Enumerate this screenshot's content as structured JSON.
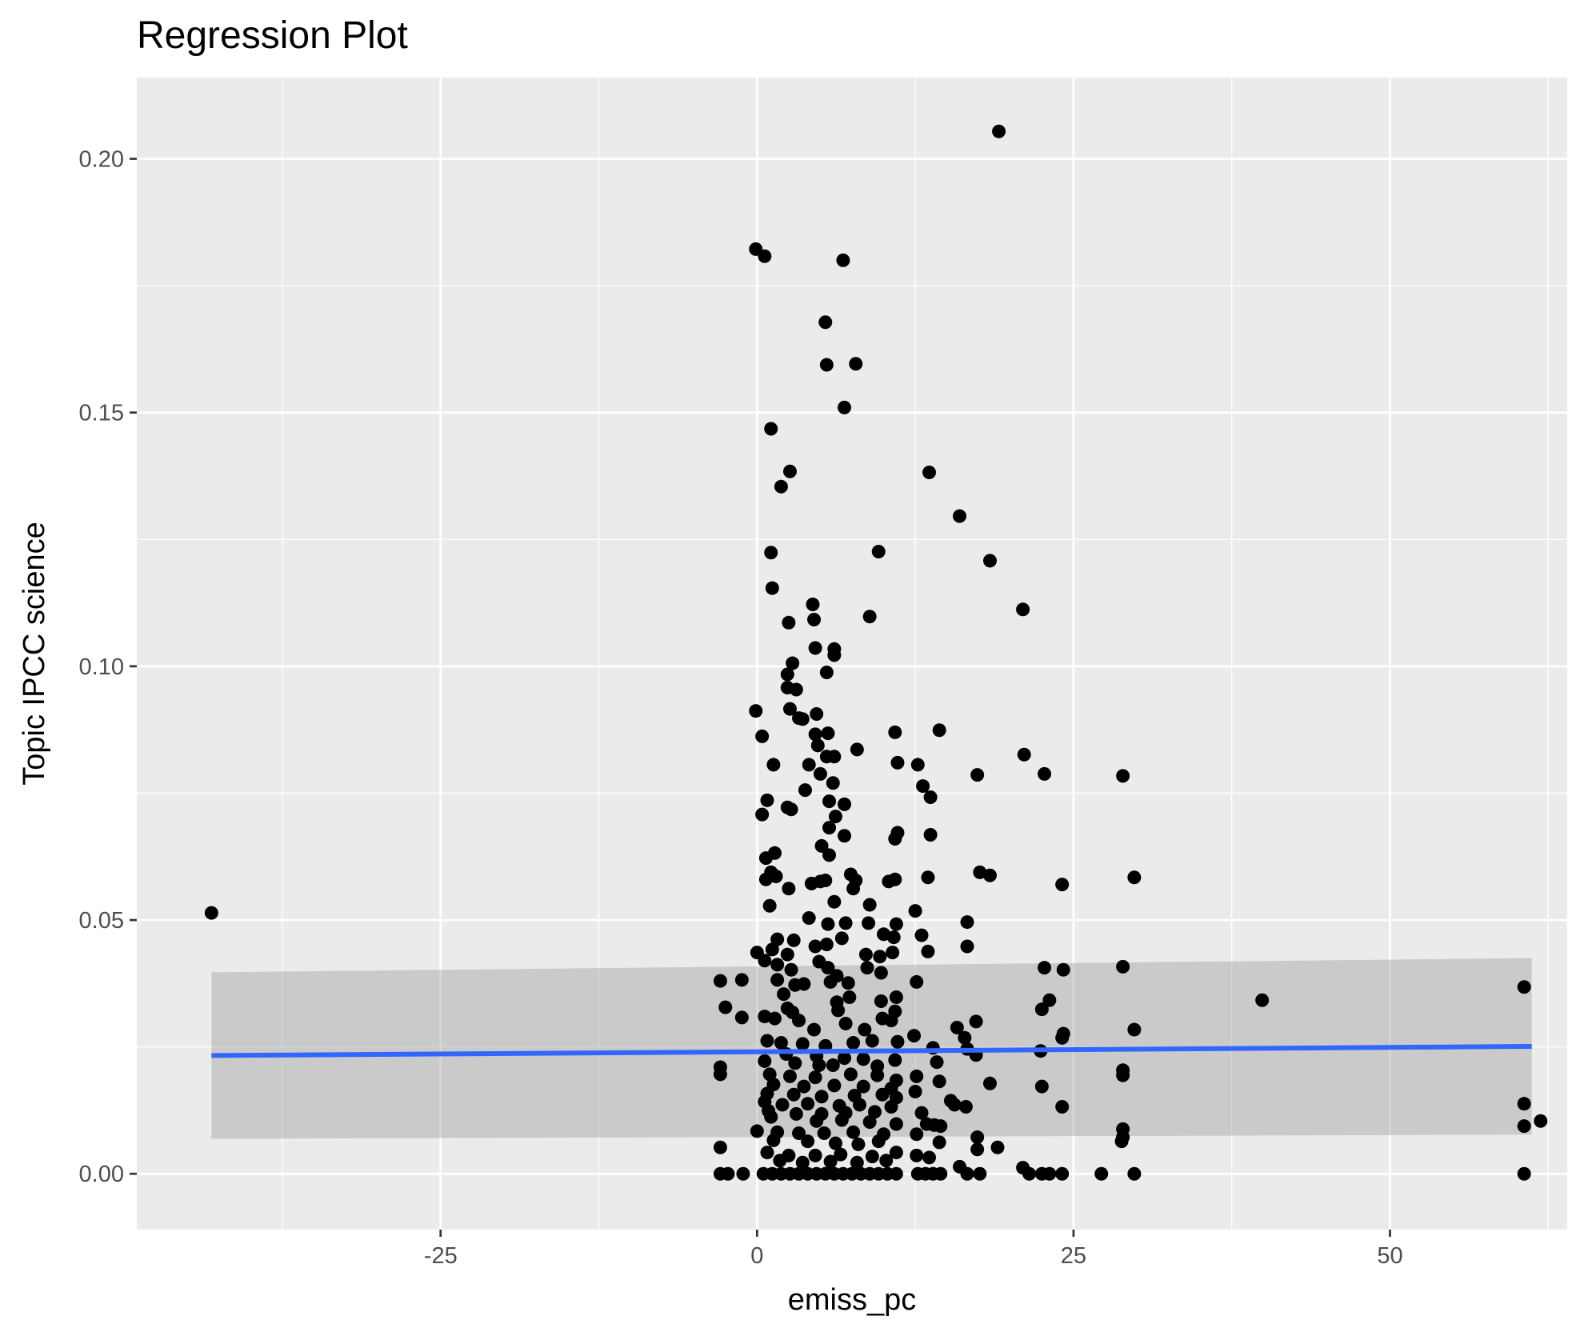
{
  "chart_data": {
    "type": "scatter",
    "title": "Regression Plot",
    "xlabel": "emiss_pc",
    "ylabel": "Topic IPCC science",
    "xlim": [
      -49,
      64
    ],
    "ylim": [
      -0.011,
      0.216
    ],
    "x_ticks": [
      -25,
      0,
      25,
      50
    ],
    "x_tick_labels": [
      "-25",
      "0",
      "25",
      "50"
    ],
    "y_ticks": [
      0.0,
      0.05,
      0.1,
      0.15,
      0.2
    ],
    "y_tick_labels": [
      "0.00",
      "0.05",
      "0.10",
      "0.15",
      "0.20"
    ],
    "grid": true,
    "colors": {
      "panel": "#ebebeb",
      "grid": "#ffffff",
      "point": "#000000",
      "line": "#3366ff",
      "ribbon": "#c2c2c2"
    },
    "regression": {
      "x": [
        -43.1,
        61.2
      ],
      "y": [
        0.0233,
        0.0251
      ],
      "ci_upper": [
        0.0397,
        0.0425
      ],
      "ci_lower": [
        0.0069,
        0.0077
      ]
    },
    "points": [
      [
        -43.1,
        0.0514
      ],
      [
        19.1,
        0.2054
      ],
      [
        -0.1,
        0.1822
      ],
      [
        0.6,
        0.1808
      ],
      [
        6.8,
        0.18
      ],
      [
        5.4,
        0.1678
      ],
      [
        5.5,
        0.1594
      ],
      [
        7.8,
        0.1596
      ],
      [
        6.9,
        0.151
      ],
      [
        1.1,
        0.1468
      ],
      [
        2.6,
        0.1384
      ],
      [
        1.9,
        0.1354
      ],
      [
        13.6,
        0.1382
      ],
      [
        16.0,
        0.1296
      ],
      [
        1.1,
        0.1224
      ],
      [
        9.6,
        0.1226
      ],
      [
        18.4,
        0.1208
      ],
      [
        1.2,
        0.1154
      ],
      [
        4.4,
        0.1122
      ],
      [
        21.0,
        0.1112
      ],
      [
        4.5,
        0.1092
      ],
      [
        8.9,
        0.1098
      ],
      [
        2.5,
        0.1086
      ],
      [
        6.1,
        0.1034
      ],
      [
        4.6,
        0.1036
      ],
      [
        6.1,
        0.1022
      ],
      [
        2.8,
        0.1006
      ],
      [
        2.4,
        0.0984
      ],
      [
        5.5,
        0.0988
      ],
      [
        3.1,
        0.0954
      ],
      [
        2.4,
        0.0958
      ],
      [
        -0.1,
        0.0912
      ],
      [
        4.7,
        0.0906
      ],
      [
        2.6,
        0.0916
      ],
      [
        3.3,
        0.0898
      ],
      [
        3.6,
        0.0896
      ],
      [
        0.4,
        0.0862
      ],
      [
        4.6,
        0.0866
      ],
      [
        5.6,
        0.0868
      ],
      [
        10.9,
        0.087
      ],
      [
        14.4,
        0.0874
      ],
      [
        4.8,
        0.0844
      ],
      [
        7.9,
        0.0836
      ],
      [
        5.5,
        0.0822
      ],
      [
        6.1,
        0.0822
      ],
      [
        1.3,
        0.0806
      ],
      [
        4.1,
        0.0806
      ],
      [
        11.1,
        0.081
      ],
      [
        12.7,
        0.0806
      ],
      [
        5.0,
        0.0788
      ],
      [
        17.4,
        0.0786
      ],
      [
        22.7,
        0.0788
      ],
      [
        28.9,
        0.0784
      ],
      [
        6.0,
        0.077
      ],
      [
        13.1,
        0.0764
      ],
      [
        21.1,
        0.0826
      ],
      [
        3.8,
        0.0756
      ],
      [
        5.7,
        0.0734
      ],
      [
        6.9,
        0.0728
      ],
      [
        0.8,
        0.0736
      ],
      [
        2.4,
        0.0722
      ],
      [
        2.7,
        0.0718
      ],
      [
        0.4,
        0.0708
      ],
      [
        6.2,
        0.0704
      ],
      [
        13.7,
        0.0742
      ],
      [
        5.7,
        0.0682
      ],
      [
        6.9,
        0.0666
      ],
      [
        11.1,
        0.0672
      ],
      [
        10.9,
        0.066
      ],
      [
        13.7,
        0.0668
      ],
      [
        5.1,
        0.0646
      ],
      [
        5.7,
        0.0628
      ],
      [
        0.7,
        0.0622
      ],
      [
        1.4,
        0.0632
      ],
      [
        1.1,
        0.0594
      ],
      [
        7.4,
        0.059
      ],
      [
        7.8,
        0.0578
      ],
      [
        10.4,
        0.0576
      ],
      [
        10.9,
        0.058
      ],
      [
        13.5,
        0.0584
      ],
      [
        17.6,
        0.0594
      ],
      [
        18.4,
        0.0588
      ],
      [
        24.1,
        0.057
      ],
      [
        29.8,
        0.0584
      ],
      [
        0.7,
        0.058
      ],
      [
        1.5,
        0.0586
      ],
      [
        2.5,
        0.0562
      ],
      [
        4.3,
        0.0572
      ],
      [
        5.0,
        0.0576
      ],
      [
        5.4,
        0.0578
      ],
      [
        7.6,
        0.0562
      ],
      [
        6.1,
        0.0536
      ],
      [
        1.0,
        0.0528
      ],
      [
        8.9,
        0.053
      ],
      [
        12.5,
        0.0518
      ],
      [
        4.1,
        0.0504
      ],
      [
        5.6,
        0.0492
      ],
      [
        7.0,
        0.0494
      ],
      [
        8.8,
        0.0494
      ],
      [
        11.0,
        0.0492
      ],
      [
        16.6,
        0.0496
      ],
      [
        13.0,
        0.047
      ],
      [
        10.0,
        0.0472
      ],
      [
        10.8,
        0.0466
      ],
      [
        6.7,
        0.0464
      ],
      [
        1.6,
        0.0462
      ],
      [
        2.9,
        0.046
      ],
      [
        4.6,
        0.0448
      ],
      [
        5.5,
        0.0452
      ],
      [
        16.6,
        0.0448
      ],
      [
        13.5,
        0.0438
      ],
      [
        0.0,
        0.0436
      ],
      [
        1.2,
        0.0442
      ],
      [
        2.4,
        0.0432
      ],
      [
        4.9,
        0.0418
      ],
      [
        8.6,
        0.0432
      ],
      [
        9.7,
        0.0428
      ],
      [
        10.7,
        0.0436
      ],
      [
        0.6,
        0.042
      ],
      [
        1.6,
        0.0412
      ],
      [
        2.7,
        0.0402
      ],
      [
        5.6,
        0.0406
      ],
      [
        6.3,
        0.039
      ],
      [
        8.7,
        0.0406
      ],
      [
        9.8,
        0.0396
      ],
      [
        22.7,
        0.0406
      ],
      [
        24.2,
        0.0402
      ],
      [
        28.9,
        0.0408
      ],
      [
        -2.9,
        0.038
      ],
      [
        -1.2,
        0.0382
      ],
      [
        1.6,
        0.0382
      ],
      [
        3.0,
        0.0372
      ],
      [
        3.7,
        0.0374
      ],
      [
        5.8,
        0.0378
      ],
      [
        7.2,
        0.0376
      ],
      [
        12.6,
        0.0378
      ],
      [
        2.1,
        0.0354
      ],
      [
        7.3,
        0.0348
      ],
      [
        11.0,
        0.0348
      ],
      [
        6.3,
        0.0338
      ],
      [
        9.8,
        0.034
      ],
      [
        23.1,
        0.0342
      ],
      [
        39.9,
        0.0342
      ],
      [
        60.6,
        0.0368
      ],
      [
        -2.5,
        0.0328
      ],
      [
        2.4,
        0.0326
      ],
      [
        2.8,
        0.0318
      ],
      [
        6.4,
        0.0322
      ],
      [
        10.9,
        0.032
      ],
      [
        22.5,
        0.0324
      ],
      [
        -1.2,
        0.0308
      ],
      [
        0.6,
        0.031
      ],
      [
        1.4,
        0.0306
      ],
      [
        3.3,
        0.0302
      ],
      [
        7.0,
        0.0296
      ],
      [
        9.9,
        0.0306
      ],
      [
        10.6,
        0.0302
      ],
      [
        17.3,
        0.03
      ],
      [
        4.5,
        0.0284
      ],
      [
        8.5,
        0.0284
      ],
      [
        15.8,
        0.0288
      ],
      [
        29.8,
        0.0284
      ],
      [
        24.2,
        0.0276
      ],
      [
        12.4,
        0.0272
      ],
      [
        16.4,
        0.0268
      ],
      [
        0.8,
        0.0262
      ],
      [
        1.9,
        0.0258
      ],
      [
        3.6,
        0.0256
      ],
      [
        5.4,
        0.0252
      ],
      [
        7.6,
        0.0258
      ],
      [
        9.1,
        0.0262
      ],
      [
        11.1,
        0.026
      ],
      [
        13.9,
        0.0248
      ],
      [
        16.6,
        0.0246
      ],
      [
        24.1,
        0.0268
      ],
      [
        22.4,
        0.0242
      ],
      [
        2.3,
        0.0236
      ],
      [
        4.7,
        0.0232
      ],
      [
        6.9,
        0.0228
      ],
      [
        8.4,
        0.0226
      ],
      [
        10.9,
        0.0224
      ],
      [
        14.2,
        0.022
      ],
      [
        17.3,
        0.0234
      ],
      [
        0.6,
        0.0222
      ],
      [
        3.0,
        0.0218
      ],
      [
        4.9,
        0.0214
      ],
      [
        6.0,
        0.0214
      ],
      [
        9.5,
        0.0212
      ],
      [
        -2.9,
        0.021
      ],
      [
        -2.9,
        0.0196
      ],
      [
        28.9,
        0.0204
      ],
      [
        28.9,
        0.0194
      ],
      [
        12.6,
        0.0192
      ],
      [
        1.0,
        0.0196
      ],
      [
        2.6,
        0.0192
      ],
      [
        4.6,
        0.019
      ],
      [
        7.4,
        0.0196
      ],
      [
        9.5,
        0.0194
      ],
      [
        11.0,
        0.0184
      ],
      [
        14.4,
        0.0182
      ],
      [
        18.4,
        0.0178
      ],
      [
        22.5,
        0.0172
      ],
      [
        1.3,
        0.0176
      ],
      [
        3.7,
        0.0172
      ],
      [
        6.1,
        0.0174
      ],
      [
        8.4,
        0.0172
      ],
      [
        10.6,
        0.0168
      ],
      [
        12.5,
        0.0162
      ],
      [
        0.8,
        0.0158
      ],
      [
        2.9,
        0.0156
      ],
      [
        5.1,
        0.0152
      ],
      [
        7.7,
        0.0154
      ],
      [
        9.9,
        0.0156
      ],
      [
        11.0,
        0.015
      ],
      [
        15.3,
        0.0144
      ],
      [
        0.6,
        0.0142
      ],
      [
        2.0,
        0.0136
      ],
      [
        4.0,
        0.0138
      ],
      [
        6.5,
        0.0134
      ],
      [
        8.1,
        0.0136
      ],
      [
        10.6,
        0.0132
      ],
      [
        15.6,
        0.0136
      ],
      [
        16.5,
        0.0132
      ],
      [
        24.1,
        0.0132
      ],
      [
        60.6,
        0.0138
      ],
      [
        0.9,
        0.0124
      ],
      [
        3.1,
        0.0118
      ],
      [
        5.1,
        0.0118
      ],
      [
        7.0,
        0.012
      ],
      [
        9.3,
        0.0122
      ],
      [
        13.0,
        0.012
      ],
      [
        1.1,
        0.0112
      ],
      [
        4.7,
        0.0104
      ],
      [
        6.7,
        0.0106
      ],
      [
        8.9,
        0.0102
      ],
      [
        11.0,
        0.0098
      ],
      [
        13.4,
        0.0098
      ],
      [
        14.0,
        0.0096
      ],
      [
        14.5,
        0.0094
      ],
      [
        61.9,
        0.0104
      ],
      [
        60.6,
        0.0094
      ],
      [
        0.0,
        0.0084
      ],
      [
        1.6,
        0.0082
      ],
      [
        3.3,
        0.008
      ],
      [
        5.3,
        0.008
      ],
      [
        7.6,
        0.0082
      ],
      [
        10.0,
        0.0078
      ],
      [
        12.6,
        0.0078
      ],
      [
        17.4,
        0.0072
      ],
      [
        28.9,
        0.0088
      ],
      [
        28.9,
        0.0072
      ],
      [
        28.8,
        0.0064
      ],
      [
        1.3,
        0.0066
      ],
      [
        4.0,
        0.0064
      ],
      [
        6.2,
        0.006
      ],
      [
        8.0,
        0.0058
      ],
      [
        9.6,
        0.0064
      ],
      [
        14.4,
        0.0062
      ],
      [
        17.4,
        0.0048
      ],
      [
        19.0,
        0.0052
      ],
      [
        -2.9,
        0.0052
      ],
      [
        0.8,
        0.0042
      ],
      [
        2.5,
        0.0036
      ],
      [
        4.6,
        0.0036
      ],
      [
        6.6,
        0.0038
      ],
      [
        9.1,
        0.0034
      ],
      [
        11.0,
        0.0042
      ],
      [
        12.6,
        0.0036
      ],
      [
        1.8,
        0.0026
      ],
      [
        3.6,
        0.0022
      ],
      [
        5.8,
        0.0024
      ],
      [
        7.9,
        0.0022
      ],
      [
        10.2,
        0.0026
      ],
      [
        13.6,
        0.0032
      ],
      [
        16.0,
        0.0014
      ],
      [
        21.0,
        0.0012
      ],
      [
        -2.9,
        0.0
      ],
      [
        -2.3,
        0.0
      ],
      [
        -1.1,
        0.0
      ],
      [
        0.5,
        0.0
      ],
      [
        1.2,
        0.0
      ],
      [
        1.9,
        0.0
      ],
      [
        2.6,
        0.0
      ],
      [
        3.3,
        0.0
      ],
      [
        4.0,
        0.0
      ],
      [
        4.7,
        0.0
      ],
      [
        5.4,
        0.0
      ],
      [
        6.1,
        0.0
      ],
      [
        6.8,
        0.0
      ],
      [
        7.5,
        0.0
      ],
      [
        8.2,
        0.0
      ],
      [
        8.9,
        0.0
      ],
      [
        9.6,
        0.0
      ],
      [
        10.3,
        0.0
      ],
      [
        11.0,
        0.0
      ],
      [
        12.7,
        0.0
      ],
      [
        13.3,
        0.0
      ],
      [
        13.9,
        0.0
      ],
      [
        14.5,
        0.0
      ],
      [
        16.6,
        0.0
      ],
      [
        17.6,
        0.0
      ],
      [
        21.5,
        0.0
      ],
      [
        22.5,
        0.0
      ],
      [
        23.1,
        0.0
      ],
      [
        24.1,
        0.0
      ],
      [
        27.2,
        0.0
      ],
      [
        29.8,
        0.0
      ],
      [
        60.6,
        0.0
      ]
    ]
  }
}
